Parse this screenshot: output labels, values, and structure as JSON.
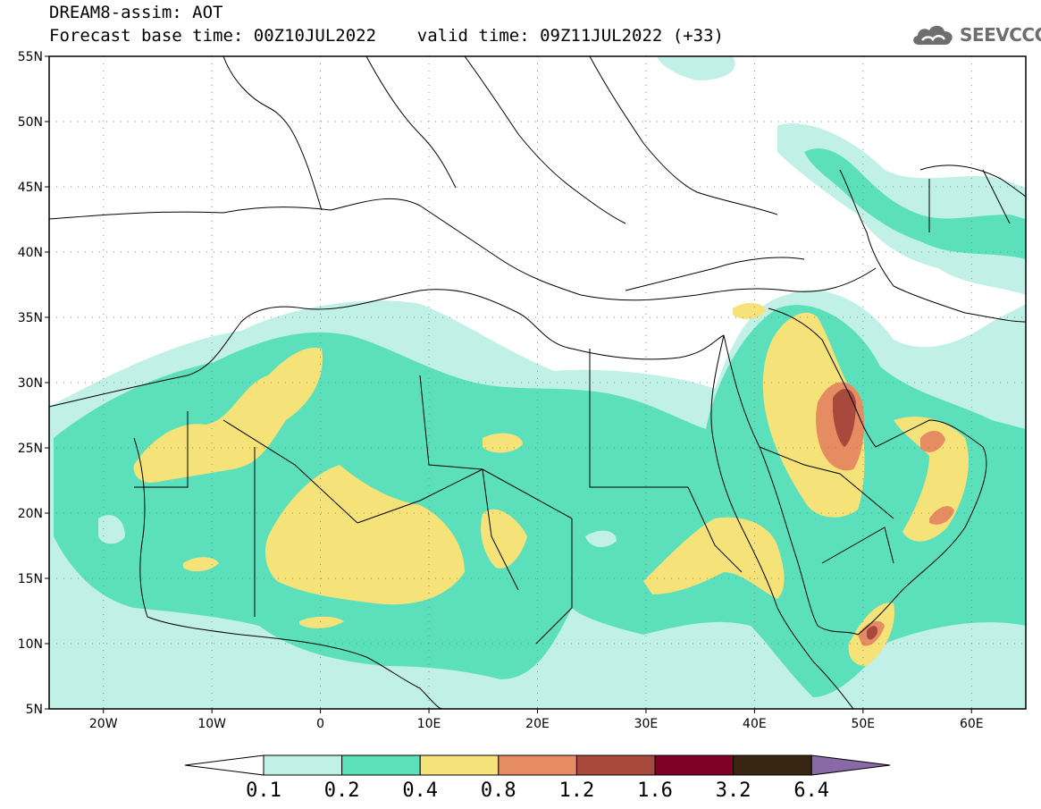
{
  "header": {
    "title_line1": "DREAM8-assim: AOT",
    "title_line2": "Forecast base time: 00Z10JUL2022    valid time: 09Z11JUL2022 (+33)"
  },
  "logo": {
    "text": "SEEVCCC",
    "icon": "cloud-logo-icon"
  },
  "map": {
    "projection": "lat-lon",
    "lon_range": [
      -25,
      65
    ],
    "lat_range": [
      5,
      55
    ],
    "lat_ticks": [
      {
        "value": 55,
        "label": "55N"
      },
      {
        "value": 50,
        "label": "50N"
      },
      {
        "value": 45,
        "label": "45N"
      },
      {
        "value": 40,
        "label": "40N"
      },
      {
        "value": 35,
        "label": "35N"
      },
      {
        "value": 30,
        "label": "30N"
      },
      {
        "value": 25,
        "label": "25N"
      },
      {
        "value": 20,
        "label": "20N"
      },
      {
        "value": 15,
        "label": "15N"
      },
      {
        "value": 10,
        "label": "10N"
      },
      {
        "value": 5,
        "label": "5N"
      }
    ],
    "lon_ticks": [
      {
        "value": -20,
        "label": "20W"
      },
      {
        "value": -10,
        "label": "10W"
      },
      {
        "value": 0,
        "label": "0"
      },
      {
        "value": 10,
        "label": "10E"
      },
      {
        "value": 20,
        "label": "20E"
      },
      {
        "value": 30,
        "label": "30E"
      },
      {
        "value": 40,
        "label": "40E"
      },
      {
        "value": 50,
        "label": "50E"
      },
      {
        "value": 60,
        "label": "60E"
      }
    ],
    "grid": true
  },
  "colorbar": {
    "labels": [
      "0.1",
      "0.2",
      "0.4",
      "0.8",
      "1.2",
      "1.6",
      "3.2",
      "6.4"
    ],
    "colors": [
      "#ffffff",
      "#c0f0e6",
      "#5ce0bb",
      "#f5e278",
      "#e68c63",
      "#a8493d",
      "#7e0022",
      "#3a2412",
      "#8a6aa6"
    ]
  }
}
